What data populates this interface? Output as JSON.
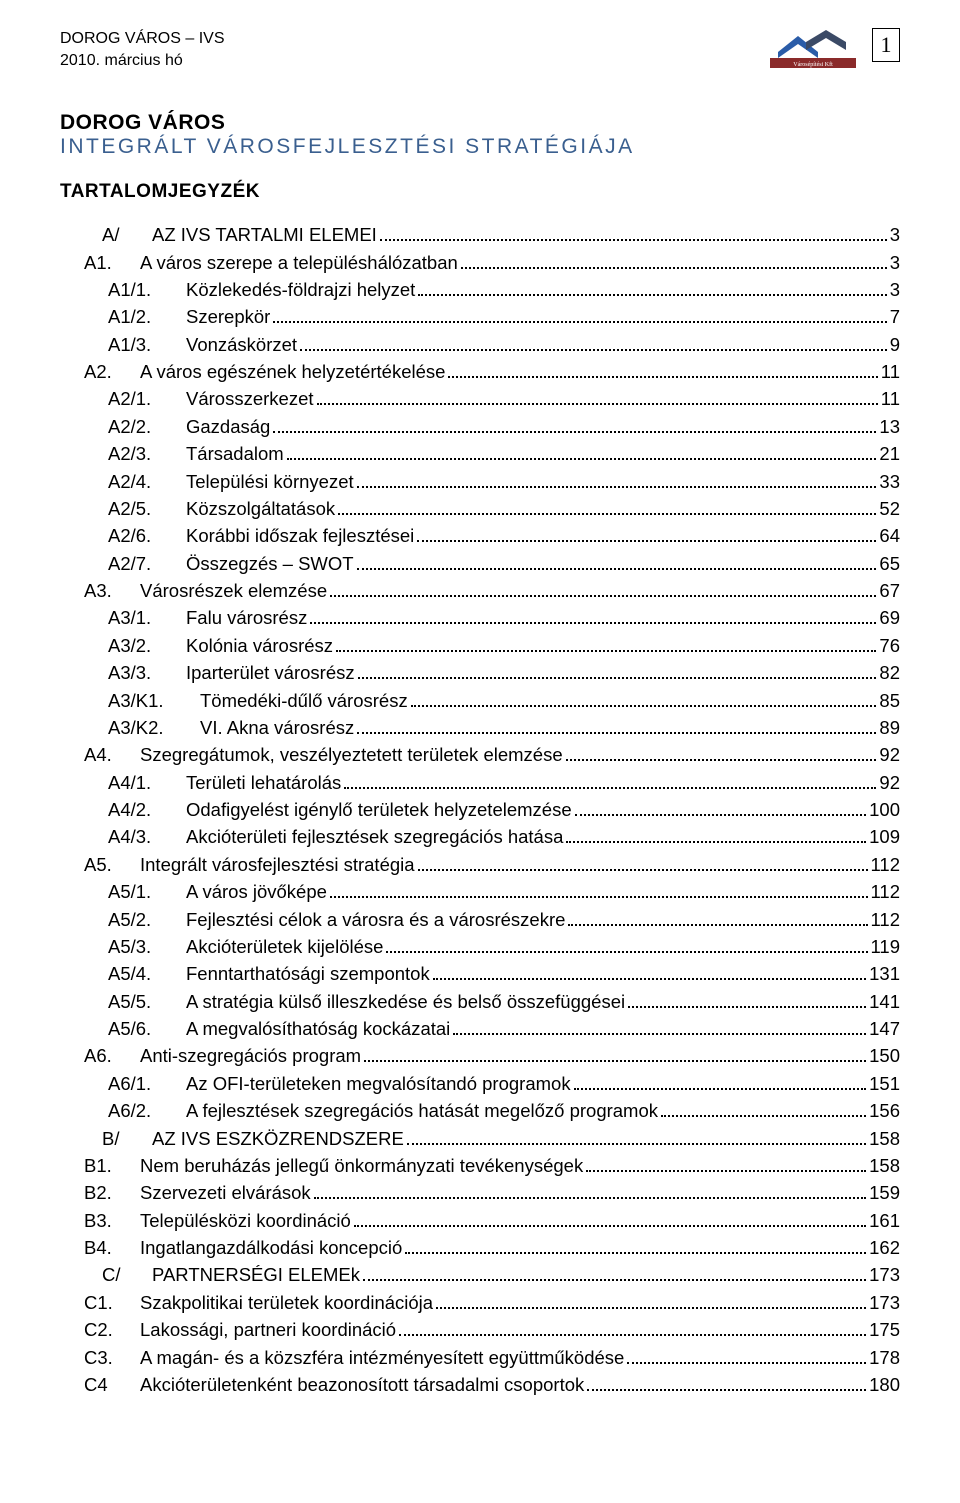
{
  "header": {
    "line1": "DOROG VÁROS – IVS",
    "line2": "2010. március hó",
    "page_number": "1",
    "logo_label": "Városépítési Kft"
  },
  "title": {
    "main": "DOROG VÁROS",
    "sub": "INTEGRÁLT VÁROSFEJLESZTÉSI STRATÉGIÁJA"
  },
  "toc_heading": "TARTALOMJEGYZÉK",
  "colors": {
    "text": "#000000",
    "subtitle": "#3a5f8f",
    "logo_blue": "#2a5ca8",
    "logo_dark": "#3b4a66",
    "logo_red": "#8a2a2a",
    "background": "#ffffff"
  },
  "typography": {
    "body_fontsize_pt": 14,
    "title_fontsize_pt": 16,
    "font_family": "Verdana"
  },
  "toc": [
    {
      "indent": 0,
      "type": "part",
      "prefix": "A/",
      "label": "AZ IVS TARTALMI ELEMEI",
      "page": "3"
    },
    {
      "indent": 1,
      "num": "A1.",
      "label": "A város szerepe a településhálózatban",
      "page": "3"
    },
    {
      "indent": 2,
      "num": "A1/1.",
      "label": "Közlekedés-földrajzi helyzet",
      "page": "3"
    },
    {
      "indent": 2,
      "num": "A1/2.",
      "label": "Szerepkör",
      "page": "7"
    },
    {
      "indent": 2,
      "num": "A1/3.",
      "label": "Vonzáskörzet",
      "page": "9"
    },
    {
      "indent": 1,
      "num": "A2.",
      "label": "A város egészének helyzetértékelése",
      "page": "11"
    },
    {
      "indent": 2,
      "num": "A2/1.",
      "label": "Városszerkezet",
      "page": "11"
    },
    {
      "indent": 2,
      "num": "A2/2.",
      "label": "Gazdaság",
      "page": "13"
    },
    {
      "indent": 2,
      "num": "A2/3.",
      "label": "Társadalom",
      "page": "21"
    },
    {
      "indent": 2,
      "num": "A2/4.",
      "label": "Települési környezet",
      "page": "33"
    },
    {
      "indent": 2,
      "num": "A2/5.",
      "label": "Közszolgáltatások",
      "page": "52"
    },
    {
      "indent": 2,
      "num": "A2/6.",
      "label": "Korábbi időszak fejlesztései",
      "page": "64"
    },
    {
      "indent": 2,
      "num": "A2/7.",
      "label": "Összegzés – SWOT",
      "page": "65"
    },
    {
      "indent": 1,
      "num": "A3.",
      "label": "Városrészek elemzése",
      "page": "67"
    },
    {
      "indent": 2,
      "num": "A3/1.",
      "label": "Falu városrész",
      "page": "69"
    },
    {
      "indent": 2,
      "num": "A3/2.",
      "label": "Kolónia városrész",
      "page": "76"
    },
    {
      "indent": 2,
      "num": "A3/3.",
      "label": "Iparterület városrész",
      "page": "82"
    },
    {
      "indent": 2,
      "num": "A3/K1.",
      "wide": true,
      "label": "Tömedéki-dűlő városrész",
      "page": "85"
    },
    {
      "indent": 2,
      "num": "A3/K2.",
      "wide": true,
      "label": "VI. Akna városrész",
      "page": "89"
    },
    {
      "indent": 1,
      "num": "A4.",
      "label": "Szegregátumok, veszélyeztetett területek elemzése",
      "page": "92"
    },
    {
      "indent": 2,
      "num": "A4/1.",
      "label": "Területi lehatárolás",
      "page": "92"
    },
    {
      "indent": 2,
      "num": "A4/2.",
      "label": "Odafigyelést igénylő területek helyzetelemzése",
      "page": "100"
    },
    {
      "indent": 2,
      "num": "A4/3.",
      "label": "Akcióterületi fejlesztések szegregációs hatása",
      "page": "109"
    },
    {
      "indent": 1,
      "num": "A5.",
      "label": "Integrált városfejlesztési stratégia",
      "page": "112"
    },
    {
      "indent": 2,
      "num": "A5/1.",
      "label": "A város jövőképe",
      "page": "112"
    },
    {
      "indent": 2,
      "num": "A5/2.",
      "label": "Fejlesztési célok a városra és a városrészekre",
      "page": "112"
    },
    {
      "indent": 2,
      "num": "A5/3.",
      "label": "Akcióterületek kijelölése",
      "page": "119"
    },
    {
      "indent": 2,
      "num": "A5/4.",
      "label": "Fenntarthatósági szempontok",
      "page": "131"
    },
    {
      "indent": 2,
      "num": "A5/5.",
      "label": "A stratégia külső illeszkedése és belső összefüggései",
      "page": "141"
    },
    {
      "indent": 2,
      "num": "A5/6.",
      "label": "A megvalósíthatóság kockázatai",
      "page": "147"
    },
    {
      "indent": 1,
      "num": "A6.",
      "label": "Anti-szegregációs program",
      "page": "150"
    },
    {
      "indent": 2,
      "num": "A6/1.",
      "label": "Az OFI-területeken megvalósítandó programok",
      "page": "151"
    },
    {
      "indent": 2,
      "num": "A6/2.",
      "label": "A fejlesztések szegregációs hatását megelőző programok",
      "page": "156"
    },
    {
      "indent": 0,
      "type": "part",
      "prefix": "B/",
      "label": "AZ IVS ESZKÖZRENDSZERE",
      "page": "158"
    },
    {
      "indent": 1,
      "num": "B1.",
      "label": "Nem beruházás jellegű önkormányzati tevékenységek",
      "page": "158"
    },
    {
      "indent": 1,
      "num": "B2.",
      "label": "Szervezeti elvárások",
      "page": "159"
    },
    {
      "indent": 1,
      "num": "B3.",
      "label": "Településközi koordináció",
      "page": "161"
    },
    {
      "indent": 1,
      "num": "B4.",
      "label": "Ingatlangazdálkodási koncepció",
      "page": "162"
    },
    {
      "indent": 0,
      "type": "part",
      "prefix": "C/",
      "label": "PARTNERSÉGI ELEMEk",
      "page": "173"
    },
    {
      "indent": 1,
      "num": "C1.",
      "label": "Szakpolitikai területek koordinációja",
      "page": "173"
    },
    {
      "indent": 1,
      "num": "C2.",
      "label": "Lakossági, partneri koordináció",
      "page": "175"
    },
    {
      "indent": 1,
      "num": "C3.",
      "label": "A magán- és a közszféra intézményesített együttműködése",
      "page": "178"
    },
    {
      "indent": 1,
      "num": "C4",
      "label": "Akcióterületenként beazonosított társadalmi csoportok",
      "page": "180"
    }
  ]
}
